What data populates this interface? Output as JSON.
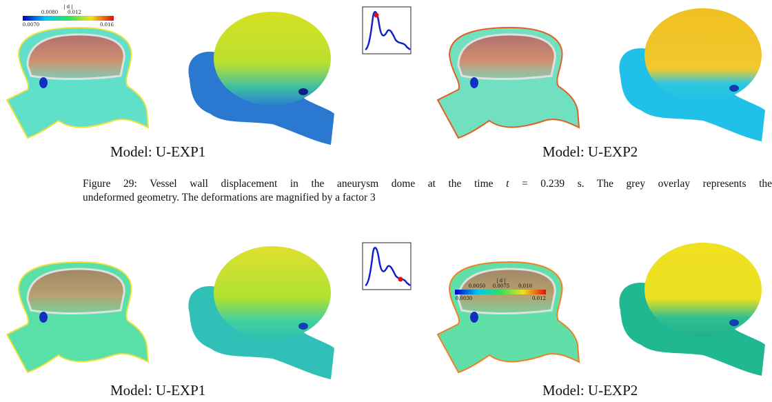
{
  "figure_top": {
    "colorbar": {
      "label": "| d |",
      "ticks_top": [
        "0.0080",
        "0.012"
      ],
      "ticks_bottom": [
        "0.0070",
        "0.016"
      ]
    },
    "captions": [
      "Model: U-EXP1",
      "Model: U-EXP2"
    ]
  },
  "figure_caption": {
    "parts": [
      "Figure 29: Vessel wall displacement in the aneurysm dome at the time ",
      "t",
      " = 0.239 s.  The grey overlay represents the",
      "undeformed geometry. The deformations are magnified by a factor 3"
    ]
  },
  "figure_bottom": {
    "colorbar": {
      "label": "| d |",
      "ticks_top": [
        "0.0050",
        "0.0075",
        "0.010"
      ],
      "ticks_bottom": [
        "0.0030",
        "0.012"
      ]
    },
    "captions": [
      "Model: U-EXP1",
      "Model: U-EXP2"
    ]
  }
}
